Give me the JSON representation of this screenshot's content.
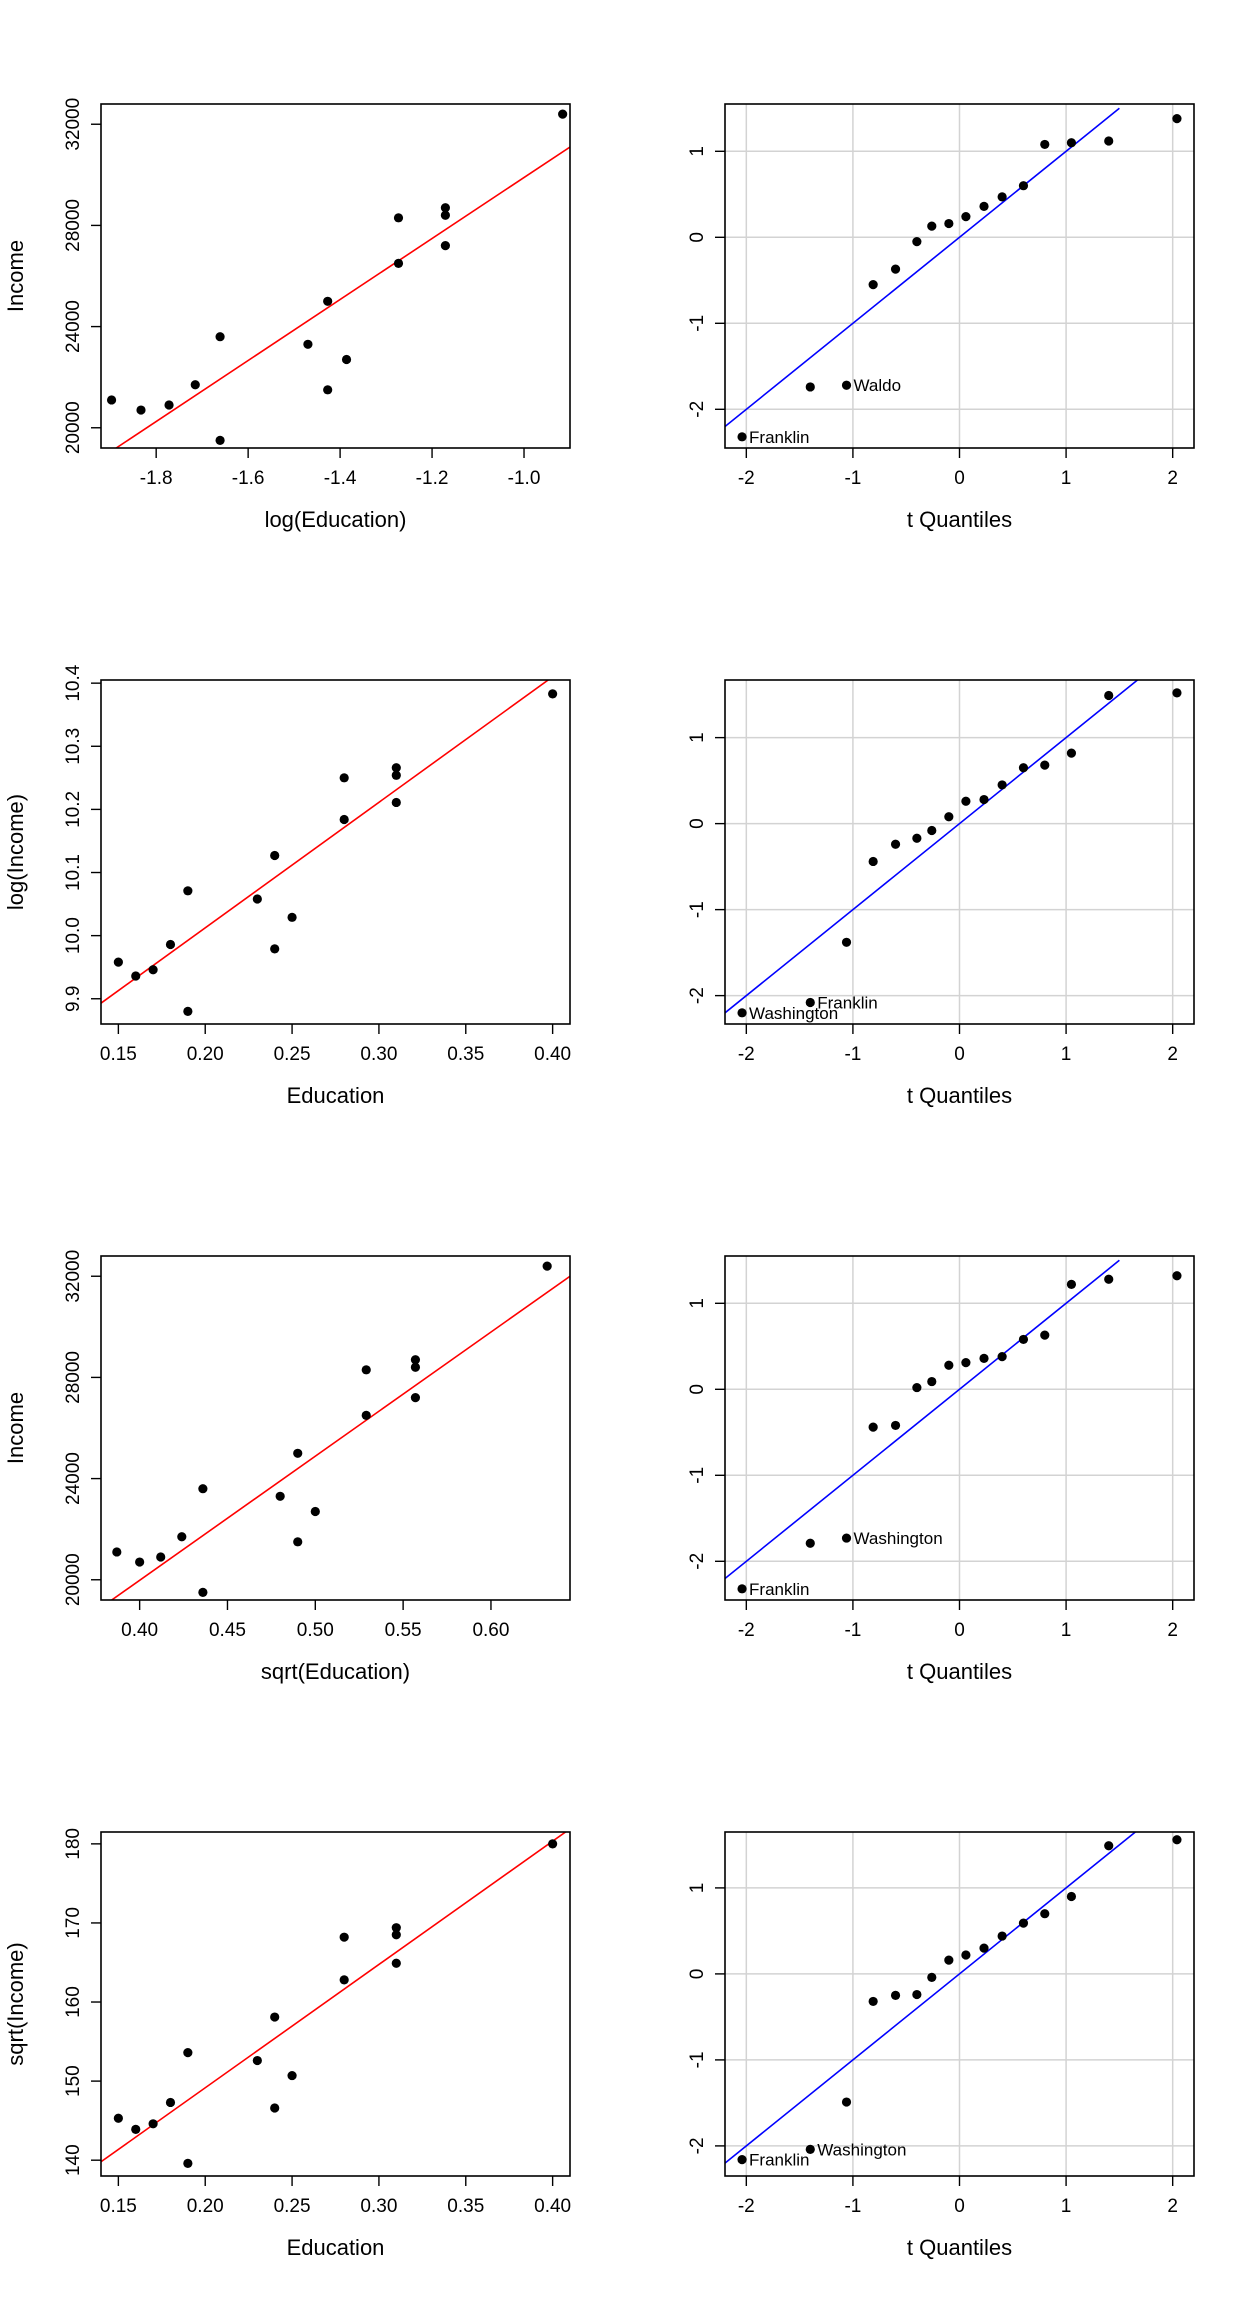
{
  "chart_data": [
    {
      "type": "scatter",
      "panel": "row1-left",
      "xlabel": "log(Education)",
      "ylabel": "Income",
      "xlim": [
        -1.92,
        -0.9
      ],
      "ylim": [
        19200,
        32800
      ],
      "xticks": [
        -1.8,
        -1.6,
        -1.4,
        -1.2,
        -1.0
      ],
      "xtick_labels": [
        "-1.8",
        "-1.6",
        "-1.4",
        "-1.2",
        "-1.0"
      ],
      "yticks": [
        20000,
        24000,
        28000,
        32000
      ],
      "ytick_labels": [
        "20000",
        "24000",
        "28000",
        "32000"
      ],
      "grid": false,
      "fit_line": {
        "color": "#ff0000",
        "from": [
          -1.92,
          18800
        ],
        "to": [
          -0.9,
          31100
        ]
      },
      "points": [
        {
          "x": -1.897,
          "y": 21100
        },
        {
          "x": -1.833,
          "y": 20700
        },
        {
          "x": -1.772,
          "y": 20900
        },
        {
          "x": -1.715,
          "y": 21700
        },
        {
          "x": -1.661,
          "y": 23600
        },
        {
          "x": -1.661,
          "y": 19500
        },
        {
          "x": -1.47,
          "y": 23300
        },
        {
          "x": -1.427,
          "y": 25000
        },
        {
          "x": -1.427,
          "y": 21500
        },
        {
          "x": -1.386,
          "y": 22700
        },
        {
          "x": -1.273,
          "y": 28300
        },
        {
          "x": -1.273,
          "y": 26500
        },
        {
          "x": -1.171,
          "y": 28700
        },
        {
          "x": -1.171,
          "y": 28400
        },
        {
          "x": -1.171,
          "y": 27200
        },
        {
          "x": -0.916,
          "y": 32400
        }
      ]
    },
    {
      "type": "scatter",
      "panel": "row1-right",
      "xlabel": "t Quantiles",
      "ylabel": "",
      "xlim": [
        -2.2,
        2.2
      ],
      "ylim": [
        -2.45,
        1.55
      ],
      "xticks": [
        -2,
        -1,
        0,
        1,
        2
      ],
      "xtick_labels": [
        "-2",
        "-1",
        "0",
        "1",
        "2"
      ],
      "yticks": [
        -2,
        -1,
        0,
        1
      ],
      "ytick_labels": [
        "-2",
        "-1",
        "0",
        "1"
      ],
      "grid": true,
      "fit_line": {
        "color": "#0000ff",
        "from": [
          -2.2,
          -2.2
        ],
        "to": [
          1.5,
          1.5
        ]
      },
      "points": [
        {
          "x": -2.04,
          "y": -2.32
        },
        {
          "x": -1.4,
          "y": -1.74
        },
        {
          "x": -1.06,
          "y": -1.72
        },
        {
          "x": -0.81,
          "y": -0.55
        },
        {
          "x": -0.6,
          "y": -0.37
        },
        {
          "x": -0.4,
          "y": -0.05
        },
        {
          "x": -0.26,
          "y": 0.13
        },
        {
          "x": -0.1,
          "y": 0.16
        },
        {
          "x": 0.06,
          "y": 0.24
        },
        {
          "x": 0.23,
          "y": 0.36
        },
        {
          "x": 0.4,
          "y": 0.47
        },
        {
          "x": 0.6,
          "y": 0.6
        },
        {
          "x": 0.8,
          "y": 1.08
        },
        {
          "x": 1.05,
          "y": 1.1
        },
        {
          "x": 1.4,
          "y": 1.12
        },
        {
          "x": 2.04,
          "y": 1.38
        }
      ],
      "labels": [
        {
          "text": "Franklin",
          "x": -2.04,
          "y": -2.32
        },
        {
          "text": "Waldo",
          "x": -1.06,
          "y": -1.72
        }
      ]
    },
    {
      "type": "scatter",
      "panel": "row2-left",
      "xlabel": "Education",
      "ylabel": "log(Income)",
      "xlim": [
        0.14,
        0.41
      ],
      "ylim": [
        9.86,
        10.405
      ],
      "xticks": [
        0.15,
        0.2,
        0.25,
        0.3,
        0.35,
        0.4
      ],
      "xtick_labels": [
        "0.15",
        "0.20",
        "0.25",
        "0.30",
        "0.35",
        "0.40"
      ],
      "yticks": [
        9.9,
        10.0,
        10.1,
        10.2,
        10.3,
        10.4
      ],
      "ytick_labels": [
        "9.9",
        "10.0",
        "10.1",
        "10.2",
        "10.3",
        "10.4"
      ],
      "grid": false,
      "fit_line": {
        "color": "#ff0000",
        "from": [
          0.14,
          9.893
        ],
        "to": [
          0.41,
          10.43
        ]
      },
      "points": [
        {
          "x": 0.15,
          "y": 9.958
        },
        {
          "x": 0.16,
          "y": 9.936
        },
        {
          "x": 0.17,
          "y": 9.946
        },
        {
          "x": 0.18,
          "y": 9.986
        },
        {
          "x": 0.19,
          "y": 10.071
        },
        {
          "x": 0.19,
          "y": 9.88
        },
        {
          "x": 0.23,
          "y": 10.058
        },
        {
          "x": 0.24,
          "y": 10.127
        },
        {
          "x": 0.24,
          "y": 9.979
        },
        {
          "x": 0.25,
          "y": 10.029
        },
        {
          "x": 0.28,
          "y": 10.25
        },
        {
          "x": 0.28,
          "y": 10.184
        },
        {
          "x": 0.31,
          "y": 10.266
        },
        {
          "x": 0.31,
          "y": 10.254
        },
        {
          "x": 0.31,
          "y": 10.211
        },
        {
          "x": 0.4,
          "y": 10.383
        }
      ]
    },
    {
      "type": "scatter",
      "panel": "row2-right",
      "xlabel": "t Quantiles",
      "ylabel": "",
      "xlim": [
        -2.2,
        2.2
      ],
      "ylim": [
        -2.33,
        1.67
      ],
      "xticks": [
        -2,
        -1,
        0,
        1,
        2
      ],
      "xtick_labels": [
        "-2",
        "-1",
        "0",
        "1",
        "2"
      ],
      "yticks": [
        -2,
        -1,
        0,
        1
      ],
      "ytick_labels": [
        "-2",
        "-1",
        "0",
        "1"
      ],
      "grid": true,
      "fit_line": {
        "color": "#0000ff",
        "from": [
          -2.2,
          -2.2
        ],
        "to": [
          1.7,
          1.7
        ]
      },
      "points": [
        {
          "x": -2.04,
          "y": -2.2
        },
        {
          "x": -1.4,
          "y": -2.08
        },
        {
          "x": -1.06,
          "y": -1.38
        },
        {
          "x": -0.81,
          "y": -0.44
        },
        {
          "x": -0.6,
          "y": -0.24
        },
        {
          "x": -0.4,
          "y": -0.17
        },
        {
          "x": -0.26,
          "y": -0.08
        },
        {
          "x": -0.1,
          "y": 0.08
        },
        {
          "x": 0.06,
          "y": 0.26
        },
        {
          "x": 0.23,
          "y": 0.28
        },
        {
          "x": 0.4,
          "y": 0.45
        },
        {
          "x": 0.6,
          "y": 0.65
        },
        {
          "x": 0.8,
          "y": 0.68
        },
        {
          "x": 1.05,
          "y": 0.82
        },
        {
          "x": 1.4,
          "y": 1.49
        },
        {
          "x": 2.04,
          "y": 1.52
        }
      ],
      "labels": [
        {
          "text": "Washington",
          "x": -2.04,
          "y": -2.2
        },
        {
          "text": "Franklin",
          "x": -1.4,
          "y": -2.08
        }
      ]
    },
    {
      "type": "scatter",
      "panel": "row3-left",
      "xlabel": "sqrt(Education)",
      "ylabel": "Income",
      "xlim": [
        0.378,
        0.645
      ],
      "ylim": [
        19200,
        32800
      ],
      "xticks": [
        0.4,
        0.45,
        0.5,
        0.55,
        0.6
      ],
      "xtick_labels": [
        "0.40",
        "0.45",
        "0.50",
        "0.55",
        "0.60"
      ],
      "yticks": [
        20000,
        24000,
        28000,
        32000
      ],
      "ytick_labels": [
        "20000",
        "24000",
        "28000",
        "32000"
      ],
      "grid": false,
      "fit_line": {
        "color": "#ff0000",
        "from": [
          0.378,
          18900
        ],
        "to": [
          0.645,
          32000
        ]
      },
      "points": [
        {
          "x": 0.387,
          "y": 21100
        },
        {
          "x": 0.4,
          "y": 20700
        },
        {
          "x": 0.412,
          "y": 20900
        },
        {
          "x": 0.424,
          "y": 21700
        },
        {
          "x": 0.436,
          "y": 23600
        },
        {
          "x": 0.436,
          "y": 19500
        },
        {
          "x": 0.48,
          "y": 23300
        },
        {
          "x": 0.49,
          "y": 25000
        },
        {
          "x": 0.49,
          "y": 21500
        },
        {
          "x": 0.5,
          "y": 22700
        },
        {
          "x": 0.529,
          "y": 28300
        },
        {
          "x": 0.529,
          "y": 26500
        },
        {
          "x": 0.557,
          "y": 28700
        },
        {
          "x": 0.557,
          "y": 28400
        },
        {
          "x": 0.557,
          "y": 27200
        },
        {
          "x": 0.632,
          "y": 32400
        }
      ]
    },
    {
      "type": "scatter",
      "panel": "row3-right",
      "xlabel": "t Quantiles",
      "ylabel": "",
      "xlim": [
        -2.2,
        2.2
      ],
      "ylim": [
        -2.45,
        1.55
      ],
      "xticks": [
        -2,
        -1,
        0,
        1,
        2
      ],
      "xtick_labels": [
        "-2",
        "-1",
        "0",
        "1",
        "2"
      ],
      "yticks": [
        -2,
        -1,
        0,
        1
      ],
      "ytick_labels": [
        "-2",
        "-1",
        "0",
        "1"
      ],
      "grid": true,
      "fit_line": {
        "color": "#0000ff",
        "from": [
          -2.2,
          -2.2
        ],
        "to": [
          1.5,
          1.5
        ]
      },
      "points": [
        {
          "x": -2.04,
          "y": -2.32
        },
        {
          "x": -1.4,
          "y": -1.79
        },
        {
          "x": -1.06,
          "y": -1.73
        },
        {
          "x": -0.81,
          "y": -0.44
        },
        {
          "x": -0.6,
          "y": -0.42
        },
        {
          "x": -0.4,
          "y": 0.02
        },
        {
          "x": -0.26,
          "y": 0.09
        },
        {
          "x": -0.1,
          "y": 0.28
        },
        {
          "x": 0.06,
          "y": 0.31
        },
        {
          "x": 0.23,
          "y": 0.36
        },
        {
          "x": 0.4,
          "y": 0.38
        },
        {
          "x": 0.6,
          "y": 0.58
        },
        {
          "x": 0.8,
          "y": 0.63
        },
        {
          "x": 1.05,
          "y": 1.22
        },
        {
          "x": 1.4,
          "y": 1.28
        },
        {
          "x": 2.04,
          "y": 1.32
        }
      ],
      "labels": [
        {
          "text": "Franklin",
          "x": -2.04,
          "y": -2.32
        },
        {
          "text": "Washington",
          "x": -1.06,
          "y": -1.73
        }
      ]
    },
    {
      "type": "scatter",
      "panel": "row4-left",
      "xlabel": "Education",
      "ylabel": "sqrt(Income)",
      "xlim": [
        0.14,
        0.41
      ],
      "ylim": [
        138,
        181.5
      ],
      "xticks": [
        0.15,
        0.2,
        0.25,
        0.3,
        0.35,
        0.4
      ],
      "xtick_labels": [
        "0.15",
        "0.20",
        "0.25",
        "0.30",
        "0.35",
        "0.40"
      ],
      "yticks": [
        140,
        150,
        160,
        170,
        180
      ],
      "ytick_labels": [
        "140",
        "150",
        "160",
        "170",
        "180"
      ],
      "grid": false,
      "fit_line": {
        "color": "#ff0000",
        "from": [
          0.14,
          139.8
        ],
        "to": [
          0.41,
          181.9
        ]
      },
      "points": [
        {
          "x": 0.15,
          "y": 145.3
        },
        {
          "x": 0.16,
          "y": 143.9
        },
        {
          "x": 0.17,
          "y": 144.6
        },
        {
          "x": 0.18,
          "y": 147.3
        },
        {
          "x": 0.19,
          "y": 153.6
        },
        {
          "x": 0.19,
          "y": 139.6
        },
        {
          "x": 0.23,
          "y": 152.6
        },
        {
          "x": 0.24,
          "y": 158.1
        },
        {
          "x": 0.24,
          "y": 146.6
        },
        {
          "x": 0.25,
          "y": 150.7
        },
        {
          "x": 0.28,
          "y": 168.2
        },
        {
          "x": 0.28,
          "y": 162.8
        },
        {
          "x": 0.31,
          "y": 169.4
        },
        {
          "x": 0.31,
          "y": 168.5
        },
        {
          "x": 0.31,
          "y": 164.9
        },
        {
          "x": 0.4,
          "y": 180.0
        }
      ]
    },
    {
      "type": "scatter",
      "panel": "row4-right",
      "xlabel": "t Quantiles",
      "ylabel": "",
      "xlim": [
        -2.2,
        2.2
      ],
      "ylim": [
        -2.35,
        1.65
      ],
      "xticks": [
        -2,
        -1,
        0,
        1,
        2
      ],
      "xtick_labels": [
        "-2",
        "-1",
        "0",
        "1",
        "2"
      ],
      "yticks": [
        -2,
        -1,
        0,
        1
      ],
      "ytick_labels": [
        "-2",
        "-1",
        "0",
        "1"
      ],
      "grid": true,
      "fit_line": {
        "color": "#0000ff",
        "from": [
          -2.2,
          -2.2
        ],
        "to": [
          1.65,
          1.65
        ]
      },
      "points": [
        {
          "x": -2.04,
          "y": -2.16
        },
        {
          "x": -1.4,
          "y": -2.04
        },
        {
          "x": -1.06,
          "y": -1.49
        },
        {
          "x": -0.81,
          "y": -0.32
        },
        {
          "x": -0.6,
          "y": -0.25
        },
        {
          "x": -0.4,
          "y": -0.24
        },
        {
          "x": -0.26,
          "y": -0.04
        },
        {
          "x": -0.1,
          "y": 0.16
        },
        {
          "x": 0.06,
          "y": 0.22
        },
        {
          "x": 0.23,
          "y": 0.3
        },
        {
          "x": 0.4,
          "y": 0.44
        },
        {
          "x": 0.6,
          "y": 0.59
        },
        {
          "x": 0.8,
          "y": 0.7
        },
        {
          "x": 1.05,
          "y": 0.9
        },
        {
          "x": 1.4,
          "y": 1.49
        },
        {
          "x": 2.04,
          "y": 1.56
        }
      ],
      "labels": [
        {
          "text": "Franklin",
          "x": -2.04,
          "y": -2.16
        },
        {
          "text": "Washington",
          "x": -1.4,
          "y": -2.04
        }
      ]
    }
  ]
}
